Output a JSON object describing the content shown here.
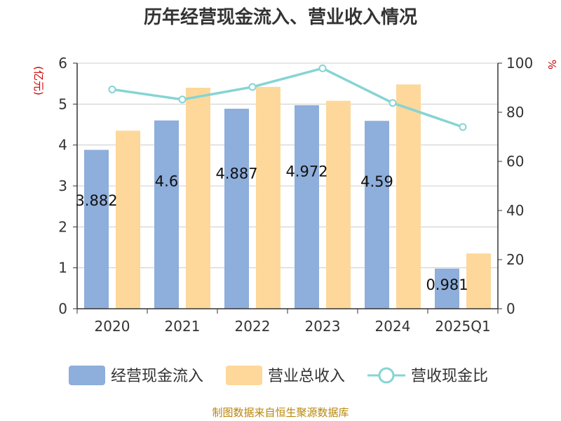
{
  "title": "历年经营现金流入、营业收入情况",
  "source": "制图数据来自恒生聚源数据库",
  "chart_data": {
    "type": "bar",
    "categories": [
      "2020",
      "2021",
      "2022",
      "2023",
      "2024",
      "2025Q1"
    ],
    "left_axis": {
      "unit": "(亿元)",
      "ylim": [
        0,
        6
      ],
      "ticks": [
        "0",
        "1",
        "2",
        "3",
        "4",
        "5",
        "6"
      ]
    },
    "right_axis": {
      "unit": "%",
      "ylim": [
        0,
        100
      ],
      "ticks": [
        "0",
        "20",
        "40",
        "60",
        "80",
        "100"
      ]
    },
    "grid": true,
    "legend_position": "bottom",
    "series": [
      {
        "name": "经营现金流入",
        "type": "bar",
        "axis": "left",
        "color": "#8eaedb",
        "values": [
          3.882,
          4.6,
          4.887,
          4.972,
          4.59,
          0.981
        ],
        "labels": [
          "3.882",
          "4.6",
          "4.887",
          "4.972",
          "4.59",
          "0.981"
        ]
      },
      {
        "name": "营业总收入",
        "type": "bar",
        "axis": "left",
        "color": "#fdd89a",
        "values": [
          4.35,
          5.4,
          5.42,
          5.08,
          5.48,
          1.35
        ]
      },
      {
        "name": "营收现金比",
        "type": "line",
        "axis": "right",
        "color": "#86d4d4",
        "values": [
          89.3,
          85.2,
          90.3,
          97.9,
          83.8,
          74.0
        ]
      }
    ]
  }
}
